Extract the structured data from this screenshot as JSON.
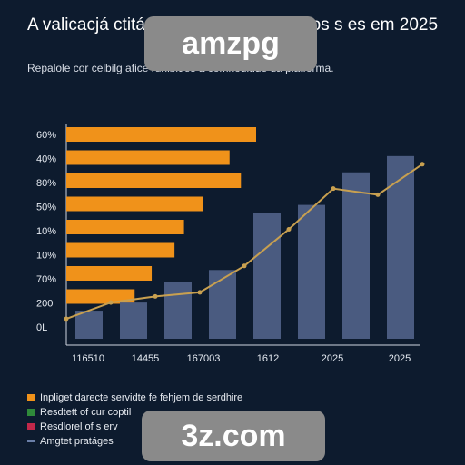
{
  "title": "A valicacjá ctitá 22 e nrjes nerizáho dos s es em 2025",
  "subtitle": "Repalole cor celbilg afice runibides a comnodidde da platforma.",
  "watermarks": [
    "amzpg",
    "3z.com"
  ],
  "colors": {
    "background": "#0d1b2e",
    "bars_h": "#f0921a",
    "bars_v": "#4a5b80",
    "line": "#c8a050",
    "axis": "#d0d6e0"
  },
  "chart_data": {
    "type": "bar",
    "title": "",
    "y_tick_labels": [
      "60%",
      "40%",
      "80%",
      "50%",
      "10%",
      "10%",
      "70%",
      "200",
      "0L"
    ],
    "x_tick_labels": [
      "116510",
      "14455",
      "167003",
      "1612",
      "2025",
      "2025"
    ],
    "horizontal_bars": {
      "series_name": "Inpliget darecte servidte fe fehjem de serdhire",
      "values": [
        100,
        86,
        92,
        72,
        62,
        57,
        45,
        36
      ]
    },
    "vertical_bars": {
      "series_name": "Resdtett of cur coptil",
      "values": [
        8,
        12,
        22,
        28,
        56,
        60,
        76,
        84
      ]
    },
    "line": {
      "series_name": "Amgtet pratáges",
      "values": [
        4,
        12,
        15,
        17,
        30,
        48,
        68,
        65,
        80
      ]
    },
    "ylim": [
      0,
      100
    ]
  },
  "legend": [
    {
      "label": "Inpliget darecte servidte fe fehjem de serdhire",
      "color": "#f0921a",
      "kind": "box"
    },
    {
      "label": "Resdtett of cur coptil",
      "color": "#2f8a3a",
      "kind": "box"
    },
    {
      "label": "Resdlorel of s erv",
      "color": "#c2284a",
      "kind": "box"
    },
    {
      "label": "Amgtet pratáges",
      "color": "#6a7fa8",
      "kind": "line"
    }
  ]
}
